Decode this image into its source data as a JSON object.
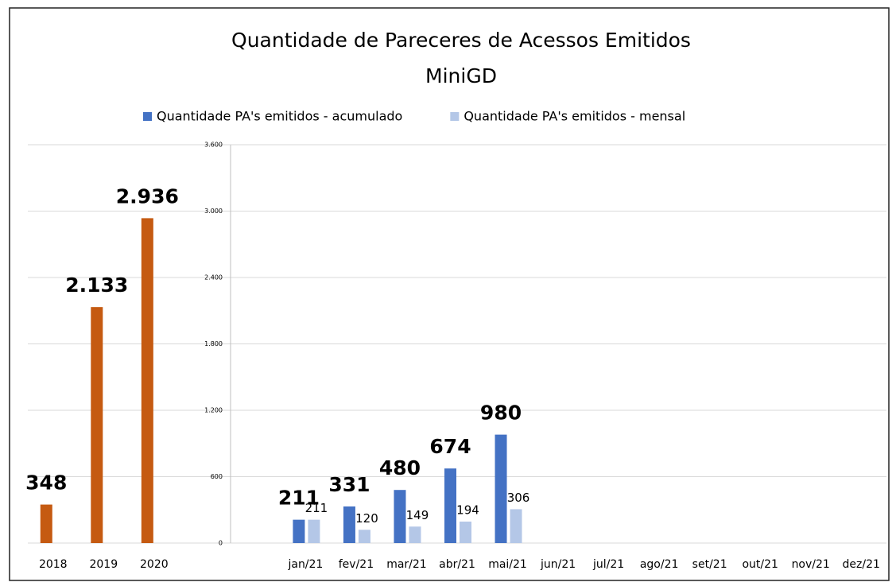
{
  "chart_data": {
    "type": "bar",
    "title": "Quantidade de Pareceres de Acessos Emitidos",
    "subtitle": "MiniGD",
    "categories": [
      "2018",
      "2019",
      "2020",
      null,
      null,
      "jan/21",
      "fev/21",
      "mar/21",
      "abr/21",
      "mai/21",
      "jun/21",
      "jul/21",
      "ago/21",
      "set/21",
      "out/21",
      "nov/21",
      "dez/21"
    ],
    "series": [
      {
        "color": "#c55a11",
        "values": [
          348,
          2133,
          2936,
          null,
          null,
          null,
          null,
          null,
          null,
          null,
          null,
          null,
          null,
          null,
          null,
          null,
          null
        ],
        "value_labels": [
          "348",
          "2.133",
          "2.936",
          null,
          null,
          null,
          null,
          null,
          null,
          null,
          null,
          null,
          null,
          null,
          null,
          null,
          null
        ]
      },
      {
        "name": "Quantidade PA's emitidos - acumulado",
        "color": "#4472c4",
        "values": [
          null,
          null,
          null,
          null,
          null,
          211,
          331,
          480,
          674,
          980,
          null,
          null,
          null,
          null,
          null,
          null,
          null
        ]
      },
      {
        "name": "Quantidade PA's emitidos - mensal",
        "color": "#b4c7e7",
        "values": [
          null,
          null,
          null,
          null,
          null,
          211,
          120,
          149,
          194,
          306,
          null,
          null,
          null,
          null,
          null,
          null,
          null
        ]
      }
    ],
    "ylim": [
      0,
      3600
    ],
    "yticks": [
      0,
      600,
      {
        "value": 1200,
        "label": "1.200"
      },
      {
        "value": 1800,
        "label": "1.800"
      },
      {
        "value": 2400,
        "label": "2.400"
      },
      {
        "value": 3000,
        "label": "3.000"
      },
      {
        "value": 3600,
        "label": "3.600"
      }
    ],
    "grid": true
  }
}
